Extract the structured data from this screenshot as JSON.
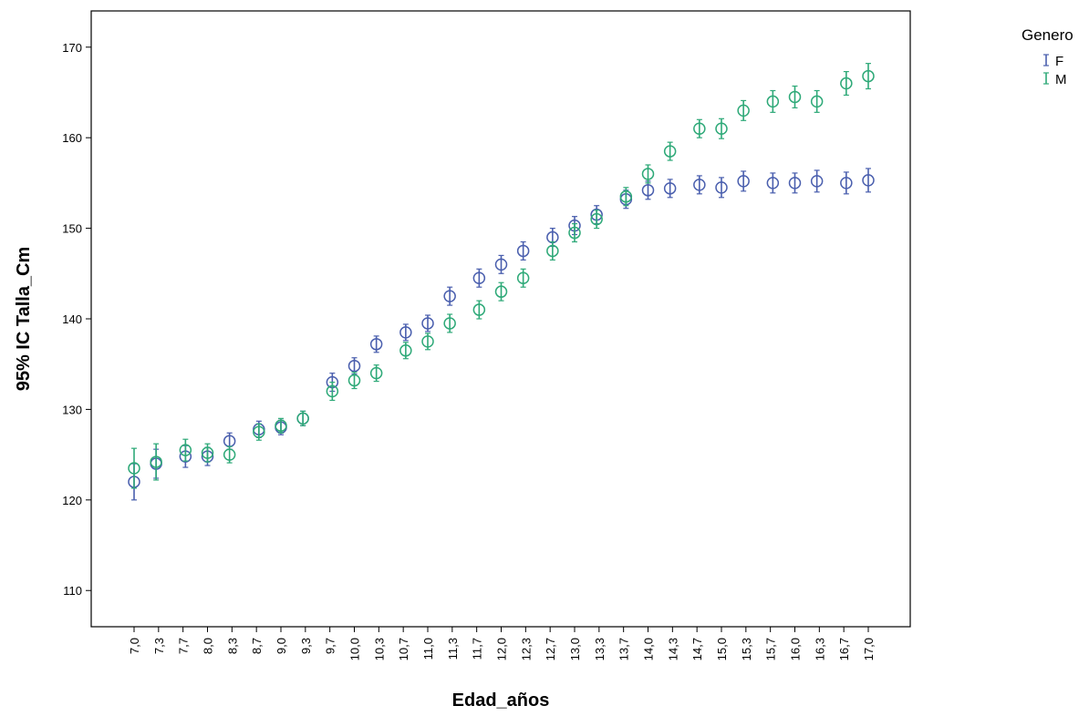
{
  "chart_data": {
    "type": "scatter",
    "title": "",
    "xlabel": "Edad_años",
    "ylabel": "95% IC Talla_Cm",
    "ylim": [
      106,
      174
    ],
    "yticks": [
      110,
      120,
      130,
      140,
      150,
      160,
      170
    ],
    "xticks": [
      "7,0",
      "7,3",
      "7,7",
      "8,0",
      "8,3",
      "8,7",
      "9,0",
      "9,3",
      "9,7",
      "10,0",
      "10,3",
      "10,7",
      "11,0",
      "11,3",
      "11,7",
      "12,0",
      "12,3",
      "12,7",
      "13,0",
      "13,3",
      "13,7",
      "14,0",
      "14,3",
      "14,7",
      "15,0",
      "15,3",
      "15,7",
      "16,0",
      "16,3",
      "16,7",
      "17,0"
    ],
    "legend": {
      "title": "Genero",
      "position": "top-right"
    },
    "grid": false,
    "series": [
      {
        "name": "F",
        "color": "#4a5fae",
        "x": [
          7.0,
          7.3,
          7.7,
          8.0,
          8.3,
          8.7,
          9.0,
          9.3,
          9.7,
          10.0,
          10.3,
          10.7,
          11.0,
          11.3,
          11.7,
          12.0,
          12.3,
          12.7,
          13.0,
          13.3,
          13.7,
          14.0,
          14.3,
          14.7,
          15.0,
          15.3,
          15.7,
          16.0,
          16.3,
          16.7,
          17.0
        ],
        "y": [
          122.0,
          124.0,
          124.8,
          124.8,
          126.5,
          127.8,
          128.0,
          129.0,
          133.0,
          134.8,
          137.2,
          138.5,
          139.5,
          142.5,
          144.5,
          146.0,
          147.5,
          149.0,
          150.3,
          151.5,
          153.2,
          154.2,
          154.4,
          154.8,
          154.5,
          155.2,
          155.0,
          155.0,
          155.2,
          155.0,
          155.3
        ],
        "ci_half": [
          2.0,
          1.6,
          1.2,
          1.0,
          0.9,
          0.9,
          0.8,
          0.8,
          1.0,
          0.9,
          0.9,
          0.9,
          0.9,
          1.0,
          1.0,
          1.0,
          1.0,
          1.0,
          1.0,
          1.0,
          1.0,
          1.0,
          1.0,
          1.0,
          1.1,
          1.1,
          1.1,
          1.1,
          1.2,
          1.2,
          1.3
        ]
      },
      {
        "name": "M",
        "color": "#2ea978",
        "x": [
          7.0,
          7.3,
          7.7,
          8.0,
          8.3,
          8.7,
          9.0,
          9.3,
          9.7,
          10.0,
          10.3,
          10.7,
          11.0,
          11.3,
          11.7,
          12.0,
          12.3,
          12.7,
          13.0,
          13.3,
          13.7,
          14.0,
          14.3,
          14.7,
          15.0,
          15.3,
          15.7,
          16.0,
          16.3,
          16.7,
          17.0
        ],
        "y": [
          123.5,
          124.2,
          125.5,
          125.2,
          125.0,
          127.5,
          128.2,
          129.0,
          132.0,
          133.2,
          134.0,
          136.5,
          137.5,
          139.5,
          141.0,
          143.0,
          144.5,
          147.5,
          149.5,
          151.0,
          153.5,
          156.0,
          158.5,
          161.0,
          161.0,
          163.0,
          164.0,
          164.5,
          164.0,
          166.0,
          166.8
        ],
        "ci_half": [
          2.2,
          2.0,
          1.2,
          1.0,
          0.9,
          0.9,
          0.8,
          0.8,
          1.0,
          0.9,
          0.9,
          0.9,
          0.9,
          1.0,
          1.0,
          1.0,
          1.0,
          1.0,
          1.0,
          1.0,
          1.0,
          1.0,
          1.0,
          1.0,
          1.1,
          1.1,
          1.2,
          1.2,
          1.2,
          1.3,
          1.4
        ]
      }
    ]
  }
}
